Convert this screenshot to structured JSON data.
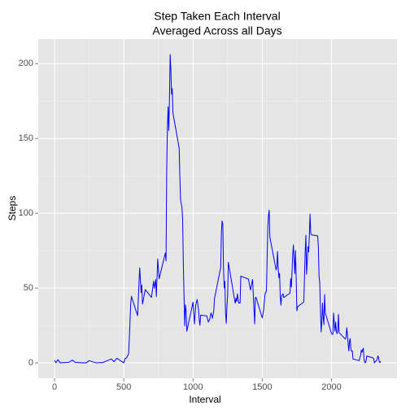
{
  "chart_data": {
    "type": "line",
    "title": [
      "Step Taken Each Interval",
      "Averaged Across all Days"
    ],
    "x_label": "Interval",
    "y_label": "Steps",
    "series": [
      {
        "name": "steps",
        "color": "#0000ff",
        "x": [
          0,
          10,
          25,
          40,
          100,
          130,
          150,
          200,
          230,
          250,
          300,
          320,
          345,
          410,
          430,
          450,
          500,
          510,
          520,
          535,
          540,
          550,
          555,
          600,
          610,
          615,
          625,
          630,
          635,
          645,
          655,
          700,
          715,
          720,
          730,
          735,
          745,
          755,
          800,
          805,
          810,
          815,
          820,
          825,
          830,
          835,
          840,
          845,
          850,
          855,
          900,
          905,
          910,
          920,
          925,
          930,
          935,
          940,
          945,
          950,
          955,
          1000,
          1010,
          1020,
          1030,
          1040,
          1045,
          1050,
          1055,
          1100,
          1110,
          1120,
          1130,
          1140,
          1150,
          1155,
          1200,
          1205,
          1210,
          1215,
          1220,
          1225,
          1230,
          1235,
          1240,
          1245,
          1250,
          1255,
          1300,
          1305,
          1310,
          1315,
          1320,
          1330,
          1340,
          1345,
          1400,
          1415,
          1430,
          1445,
          1450,
          1455,
          1500,
          1510,
          1520,
          1530,
          1540,
          1545,
          1550,
          1555,
          1600,
          1605,
          1610,
          1615,
          1620,
          1625,
          1630,
          1635,
          1640,
          1645,
          1650,
          1655,
          1700,
          1705,
          1710,
          1715,
          1720,
          1725,
          1730,
          1735,
          1740,
          1745,
          1750,
          1755,
          1800,
          1805,
          1810,
          1815,
          1820,
          1825,
          1830,
          1835,
          1840,
          1845,
          1850,
          1855,
          1900,
          1905,
          1910,
          1915,
          1920,
          1925,
          1930,
          1935,
          1940,
          1945,
          1950,
          1955,
          2000,
          2005,
          2010,
          2015,
          2020,
          2025,
          2030,
          2035,
          2040,
          2045,
          2050,
          2055,
          2100,
          2105,
          2110,
          2115,
          2120,
          2125,
          2130,
          2135,
          2140,
          2145,
          2150,
          2155,
          2200,
          2205,
          2210,
          2215,
          2220,
          2225,
          2230,
          2235,
          2240,
          2245,
          2250,
          2255,
          2300,
          2305,
          2310,
          2315,
          2320,
          2325,
          2330,
          2335,
          2340,
          2345,
          2350,
          2355
        ],
        "values": [
          1.7,
          0.1,
          2.1,
          0,
          0.3,
          1.8,
          0.3,
          0,
          0,
          1.5,
          0,
          0.2,
          0.1,
          2.6,
          0.8,
          3.1,
          0,
          3.0,
          3.3,
          6.1,
          16.0,
          39.5,
          44.5,
          31.5,
          53.8,
          63.5,
          47.1,
          52.2,
          39.3,
          44.2,
          49.0,
          43.8,
          54.5,
          49.9,
          55.7,
          44.3,
          69.5,
          56.2,
          73.4,
          68.2,
          129.4,
          157.5,
          171.2,
          155.4,
          177.3,
          206.2,
          195.9,
          179.6,
          183.4,
          167.0,
          143.5,
          124.0,
          109.1,
          103.7,
          96.0,
          66.2,
          45.2,
          24.8,
          38.8,
          35.0,
          21.1,
          40.6,
          26.0,
          38.9,
          42.4,
          35.5,
          28.4,
          25.1,
          31.9,
          31.4,
          27.3,
          29.0,
          33.4,
          29.8,
          35.0,
          43.0,
          63.9,
          87.6,
          94.8,
          92.8,
          63.4,
          50.2,
          54.5,
          32.4,
          26.5,
          37.7,
          45.1,
          67.3,
          42.3,
          39.9,
          43.3,
          41.0,
          46.2,
          40.0,
          40.0,
          58.0,
          56.0,
          48.7,
          55.8,
          26.1,
          43.6,
          43.8,
          30.0,
          35.5,
          46.0,
          48.1,
          90.6,
          98.7,
          102.1,
          84.0,
          62.1,
          64.1,
          74.5,
          63.2,
          56.9,
          59.8,
          43.9,
          38.6,
          44.7,
          45.5,
          46.2,
          43.7,
          46.6,
          56.3,
          50.7,
          61.2,
          72.7,
          78.9,
          68.9,
          59.7,
          75.1,
          56.5,
          34.8,
          37.5,
          40.7,
          58.0,
          74.7,
          85.3,
          59.3,
          67.8,
          77.7,
          74.2,
          85.3,
          99.5,
          86.6,
          85.6,
          84.9,
          77.8,
          58.0,
          53.4,
          36.3,
          20.7,
          27.4,
          40.0,
          30.2,
          25.5,
          45.7,
          33.5,
          19.6,
          19.0,
          19.3,
          33.3,
          26.8,
          21.2,
          27.3,
          21.3,
          19.5,
          21.3,
          32.3,
          20.2,
          15.9,
          17.2,
          23.5,
          19.2,
          12.5,
          8.0,
          14.7,
          16.3,
          8.7,
          7.8,
          8.1,
          2.6,
          1.5,
          3.7,
          4.8,
          8.5,
          7.1,
          8.7,
          9.8,
          2.2,
          0.3,
          0.1,
          1.6,
          4.6,
          3.3,
          2.8,
          0,
          0.8,
          1.0,
          1.6,
          2.6,
          4.7,
          3.3,
          0.6,
          0.2,
          1.1
        ]
      }
    ],
    "xlim": [
      -117.75,
      2472.75
    ],
    "xticks": [
      0,
      500,
      1000,
      1500,
      2000
    ],
    "ylim": [
      -10.3,
      216.5
    ],
    "yticks": [
      0,
      50,
      100,
      150,
      200
    ],
    "grid": true
  }
}
